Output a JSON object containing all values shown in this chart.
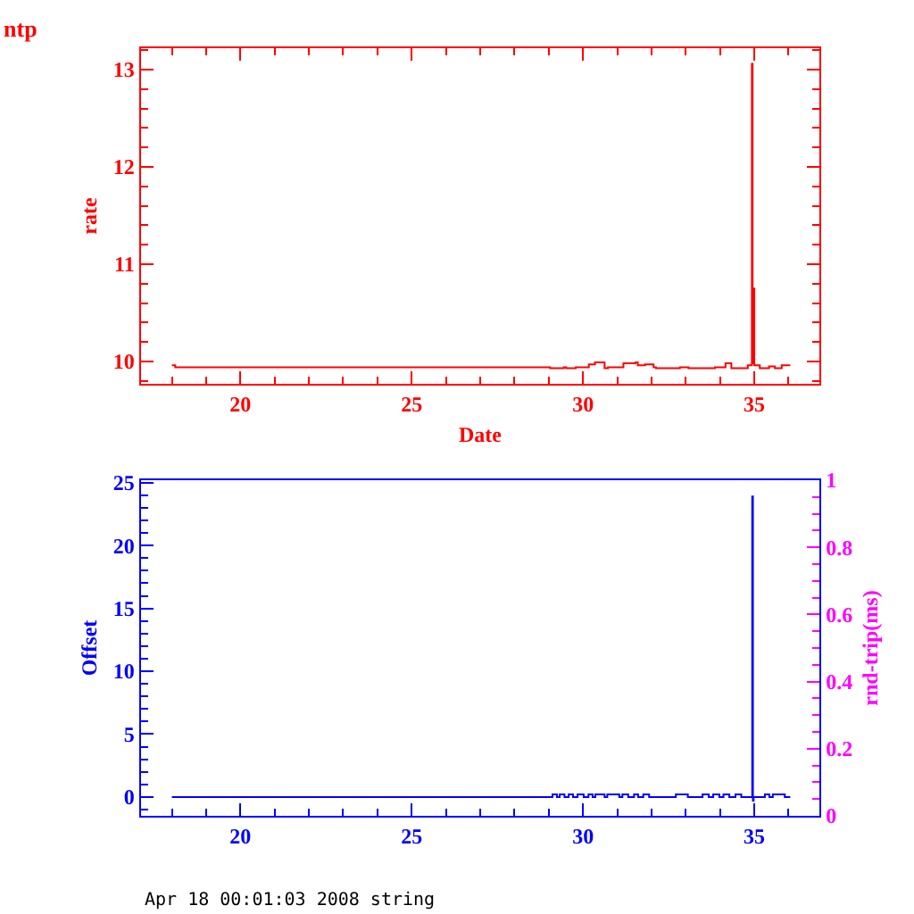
{
  "chart_data": [
    {
      "type": "step",
      "title": "ntp",
      "xlabel": "Date",
      "ylabel": "rate",
      "color": "#ff0000",
      "x": [
        18,
        18.1,
        29.04,
        29.44,
        29.51,
        29.79,
        30.17,
        30.35,
        30.63,
        30.73,
        31.18,
        31.53,
        31.6,
        31.81,
        32.06,
        32.13,
        32.83,
        33.08,
        33.85,
        34.16,
        34.33,
        34.81,
        34.93,
        34.95,
        34.98,
        35.0,
        35.16,
        35.43,
        35.6,
        35.8,
        36.05
      ],
      "values": [
        9.96,
        9.94,
        9.93,
        9.94,
        9.93,
        9.94,
        9.97,
        9.99,
        9.93,
        9.94,
        9.98,
        9.99,
        9.96,
        9.97,
        9.94,
        9.93,
        9.94,
        9.93,
        9.94,
        9.98,
        9.93,
        9.96,
        13.06,
        9.98,
        10.75,
        9.96,
        9.93,
        9.95,
        9.93,
        9.96,
        9.96
      ],
      "xlim": [
        17.1,
        36.9
      ],
      "xticks": [
        {
          "value": 18,
          "label": null
        },
        {
          "value": 19,
          "label": null
        },
        20,
        {
          "value": 21,
          "label": null
        },
        {
          "value": 22,
          "label": null
        },
        {
          "value": 23,
          "label": null
        },
        {
          "value": 24,
          "label": null
        },
        25,
        {
          "value": 26,
          "label": null
        },
        {
          "value": 27,
          "label": null
        },
        {
          "value": 28,
          "label": null
        },
        {
          "value": 29,
          "label": null
        },
        30,
        {
          "value": 31,
          "label": null
        },
        {
          "value": 32,
          "label": null
        },
        {
          "value": 33,
          "label": null
        },
        {
          "value": 34,
          "label": null
        },
        35,
        {
          "value": 36,
          "label": null
        }
      ],
      "ylim": [
        9.77,
        13.22
      ],
      "yticks": [
        {
          "value": 9.8,
          "label": null
        },
        10,
        {
          "value": 10.2,
          "label": null
        },
        {
          "value": 10.4,
          "label": null
        },
        {
          "value": 10.6,
          "label": null
        },
        {
          "value": 10.8,
          "label": null
        },
        11,
        {
          "value": 11.2,
          "label": null
        },
        {
          "value": 11.4,
          "label": null
        },
        {
          "value": 11.6,
          "label": null
        },
        {
          "value": 11.8,
          "label": null
        },
        12,
        {
          "value": 12.2,
          "label": null
        },
        {
          "value": 12.4,
          "label": null
        },
        {
          "value": 12.6,
          "label": null
        },
        {
          "value": 12.8,
          "label": null
        },
        13,
        {
          "value": 13.2,
          "label": null
        }
      ]
    },
    {
      "type": "step",
      "ylabel": "Offset",
      "y2label": "rnd-trip(ms)",
      "annotations": [
        "Apr 18 00:01:03 2008 string"
      ],
      "color": "#0000ff",
      "x": [
        18,
        29.11,
        29.24,
        29.32,
        29.46,
        29.58,
        29.71,
        29.84,
        30.02,
        30.16,
        30.28,
        30.36,
        30.63,
        30.71,
        31.06,
        31.15,
        31.32,
        31.49,
        31.61,
        31.76,
        31.93,
        32.71,
        33.06,
        33.49,
        33.67,
        33.8,
        33.98,
        34.1,
        34.27,
        34.45,
        34.62,
        34.94,
        34.96,
        34.98,
        35.31,
        35.44,
        35.54,
        35.89,
        36.05
      ],
      "values": [
        0,
        0.2,
        0,
        0.2,
        0,
        0.2,
        0,
        0.2,
        0,
        0.2,
        0,
        0.2,
        0,
        0.2,
        0,
        0.2,
        0,
        0.2,
        0,
        0.2,
        0,
        0.2,
        0,
        0.2,
        0,
        0.2,
        0,
        0.2,
        0,
        0.2,
        0,
        23.9,
        -0.3,
        0,
        0.2,
        0,
        0.2,
        0,
        0
      ],
      "xlim": [
        17.1,
        36.9
      ],
      "xticks": [
        {
          "value": 18,
          "label": null
        },
        {
          "value": 19,
          "label": null
        },
        20,
        {
          "value": 21,
          "label": null
        },
        {
          "value": 22,
          "label": null
        },
        {
          "value": 23,
          "label": null
        },
        {
          "value": 24,
          "label": null
        },
        25,
        {
          "value": 26,
          "label": null
        },
        {
          "value": 27,
          "label": null
        },
        {
          "value": 28,
          "label": null
        },
        {
          "value": 29,
          "label": null
        },
        30,
        {
          "value": 31,
          "label": null
        },
        {
          "value": 32,
          "label": null
        },
        {
          "value": 33,
          "label": null
        },
        {
          "value": 34,
          "label": null
        },
        35,
        {
          "value": 36,
          "label": null
        }
      ],
      "ylim": [
        -1.5,
        25.2
      ],
      "yticks": [
        {
          "value": -1,
          "label": null
        },
        0,
        {
          "value": 1,
          "label": null
        },
        {
          "value": 2,
          "label": null
        },
        {
          "value": 3,
          "label": null
        },
        {
          "value": 4,
          "label": null
        },
        5,
        {
          "value": 6,
          "label": null
        },
        {
          "value": 7,
          "label": null
        },
        {
          "value": 8,
          "label": null
        },
        {
          "value": 9,
          "label": null
        },
        10,
        {
          "value": 11,
          "label": null
        },
        {
          "value": 12,
          "label": null
        },
        {
          "value": 13,
          "label": null
        },
        {
          "value": 14,
          "label": null
        },
        15,
        {
          "value": 16,
          "label": null
        },
        {
          "value": 17,
          "label": null
        },
        {
          "value": 18,
          "label": null
        },
        {
          "value": 19,
          "label": null
        },
        20,
        {
          "value": 21,
          "label": null
        },
        {
          "value": 22,
          "label": null
        },
        {
          "value": 23,
          "label": null
        },
        {
          "value": 24,
          "label": null
        },
        25
      ],
      "y2lim": [
        0,
        1
      ],
      "y2ticks": [
        0,
        {
          "value": 0.05,
          "label": null
        },
        {
          "value": 0.1,
          "label": null
        },
        {
          "value": 0.15,
          "label": null
        },
        0.2,
        {
          "value": 0.25,
          "label": null
        },
        {
          "value": 0.3,
          "label": null
        },
        {
          "value": 0.35,
          "label": null
        },
        0.4,
        {
          "value": 0.45,
          "label": null
        },
        {
          "value": 0.5,
          "label": null
        },
        {
          "value": 0.55,
          "label": null
        },
        0.6,
        {
          "value": 0.65,
          "label": null
        },
        {
          "value": 0.7,
          "label": null
        },
        {
          "value": 0.75,
          "label": null
        },
        0.8,
        {
          "value": 0.85,
          "label": null
        },
        {
          "value": 0.9,
          "label": null
        },
        {
          "value": 0.95,
          "label": null
        },
        1
      ]
    }
  ]
}
